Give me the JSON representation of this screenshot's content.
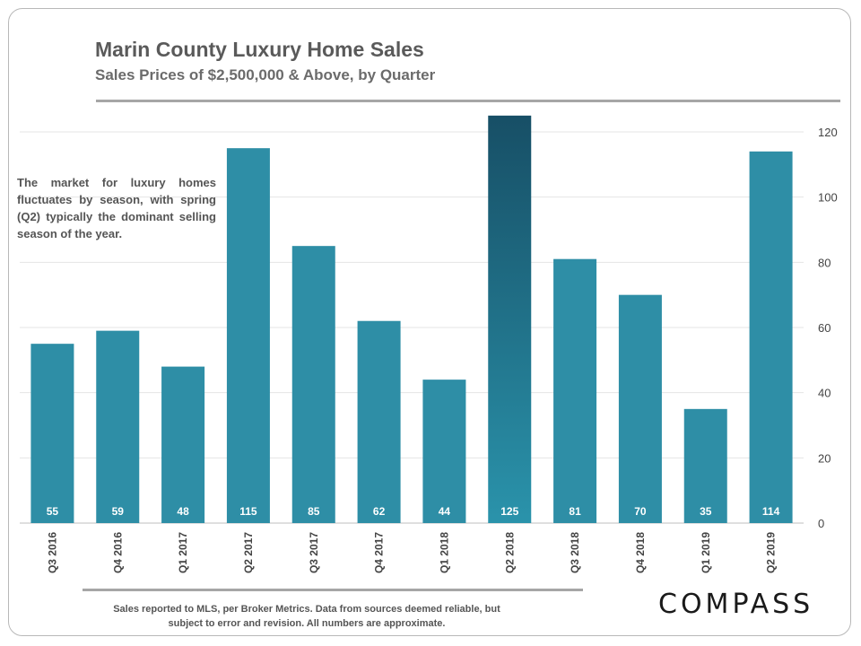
{
  "header": {
    "title": "Marin County Luxury Home Sales",
    "subtitle": "Sales Prices of $2,500,000 & Above, by Quarter"
  },
  "annotation": "The market for luxury homes fluctuates by season, with spring (Q2) typically the dominant selling season of the year.",
  "footer": {
    "note_line1": "Sales reported to MLS, per Broker Metrics. Data from sources deemed reliable, but",
    "note_line2": "subject to error and revision. All numbers are approximate.",
    "logo": "COMPASS"
  },
  "colors": {
    "bar": "#2e8ea6",
    "highlight_top": "#174f66",
    "highlight_bottom": "#2a93ab",
    "value_label": "#ffffff",
    "grid": "#e4e4e4",
    "tick_text": "#444444"
  },
  "chart_data": {
    "type": "bar",
    "categories": [
      "Q3 2016",
      "Q4 2016",
      "Q1 2017",
      "Q2 2017",
      "Q3 2017",
      "Q4 2017",
      "Q1 2018",
      "Q2 2018",
      "Q3 2018",
      "Q4 2018",
      "Q1 2019",
      "Q2 2019"
    ],
    "values": [
      55,
      59,
      48,
      115,
      85,
      62,
      44,
      125,
      81,
      70,
      35,
      114
    ],
    "highlight_category": "Q2 2018",
    "ylim": [
      0,
      120
    ],
    "y_ticks": [
      0,
      20,
      40,
      60,
      80,
      100,
      120
    ],
    "y_axis_position": "right",
    "grid": true,
    "data_labels": "inside-bottom",
    "legend": "none"
  }
}
